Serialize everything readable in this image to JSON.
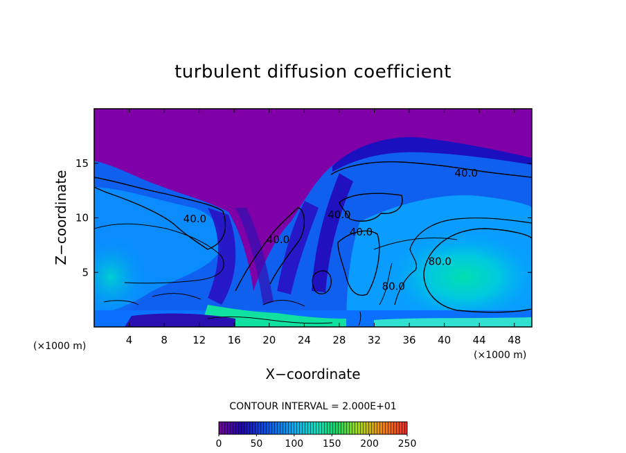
{
  "chart_data": {
    "type": "heatmap",
    "title": "turbulent diffusion coefficient",
    "xlabel": "X−coordinate",
    "ylabel": "Z−coordinate",
    "x_unit": "(×1000 m)",
    "y_unit": "(×1000 m)",
    "xlim": [
      0,
      50
    ],
    "ylim": [
      0,
      20
    ],
    "x_ticks": [
      4,
      8,
      12,
      16,
      20,
      24,
      28,
      32,
      36,
      40,
      44,
      48
    ],
    "x_tick_labels": [
      "4",
      "8",
      "12",
      "16",
      "20",
      "24",
      "28",
      "32",
      "36",
      "40",
      "44",
      "48"
    ],
    "y_ticks": [
      5,
      10,
      15
    ],
    "y_tick_labels": [
      "5",
      "10",
      "15"
    ],
    "contour_interval_text": "CONTOUR INTERVAL = 2.000E+01",
    "contour_labels": [
      {
        "text": "40.0",
        "x": 42.5,
        "y": 14.1
      },
      {
        "text": "40.0",
        "x": 11.5,
        "y": 9.9
      },
      {
        "text": "40.0",
        "x": 21.0,
        "y": 8.0
      },
      {
        "text": "40.0",
        "x": 28.0,
        "y": 10.3
      },
      {
        "text": "40.0",
        "x": 30.5,
        "y": 8.7
      },
      {
        "text": "80.0",
        "x": 39.5,
        "y": 6.0
      },
      {
        "text": "80.0",
        "x": 34.2,
        "y": 3.7
      }
    ],
    "colorbar": {
      "min": 0,
      "max": 250,
      "ticks": [
        0,
        50,
        100,
        150,
        200,
        250
      ],
      "tick_labels": [
        "0",
        "50",
        "100",
        "150",
        "200",
        "250"
      ],
      "colors": [
        "#7b00a8",
        "#1a00c8",
        "#0050ff",
        "#00b0ff",
        "#00e8c0",
        "#00e060",
        "#a0e000",
        "#ff8000",
        "#ff2020"
      ]
    },
    "background_value_color": "#7f00a7"
  }
}
